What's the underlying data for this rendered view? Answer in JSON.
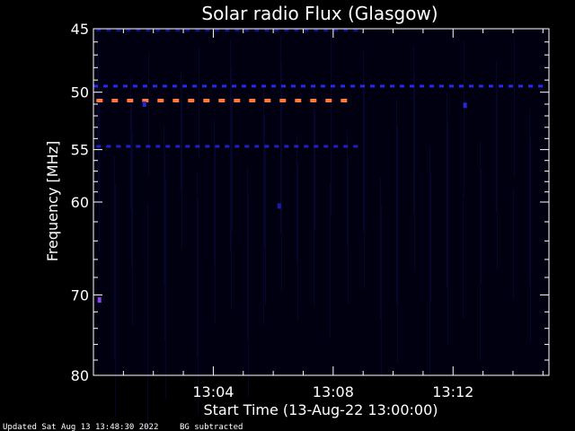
{
  "chart_data": {
    "type": "heatmap",
    "title": "Solar radio Flux (Glasgow)",
    "xlabel": "Start Time (13-Aug-22 13:00:00)",
    "ylabel": "Frequency [MHz]",
    "x_unit": "minutes after 13:00:00",
    "xlim": [
      0,
      15.2
    ],
    "ylim": [
      45,
      80
    ],
    "y_scale": "log",
    "x_ticks": [
      {
        "value": 4,
        "label": "13:04"
      },
      {
        "value": 8,
        "label": "13:08"
      },
      {
        "value": 12,
        "label": "13:12"
      }
    ],
    "y_ticks": [
      {
        "value": 45,
        "label": "45"
      },
      {
        "value": 50,
        "label": "50"
      },
      {
        "value": 55,
        "label": "55"
      },
      {
        "value": 60,
        "label": "60"
      },
      {
        "value": 70,
        "label": "70"
      },
      {
        "value": 80,
        "label": "80"
      }
    ],
    "background_color": "#000010",
    "frame_color": "#ffffff",
    "emission_bands": [
      {
        "frequency": 45.1,
        "x_start": 0.1,
        "x_end": 8.8,
        "color": "#14149a",
        "intensity": "low"
      },
      {
        "frequency": 49.5,
        "x_start": 0.0,
        "x_end": 15.2,
        "color": "#2828f0",
        "intensity": "medium"
      },
      {
        "frequency": 50.7,
        "x_start": 0.1,
        "x_end": 8.8,
        "color": "#ff7a3c",
        "intensity": "high"
      },
      {
        "frequency": 54.7,
        "x_start": 0.1,
        "x_end": 8.8,
        "color": "#2020c8",
        "intensity": "medium"
      }
    ],
    "bursts": [
      {
        "time": 0.2,
        "frequency": 70.6,
        "color": "#9040ff"
      },
      {
        "time": 1.7,
        "frequency": 51.0,
        "color": "#2828d0"
      },
      {
        "time": 12.4,
        "frequency": 51.1,
        "color": "#2828d0"
      },
      {
        "time": 6.2,
        "frequency": 60.4,
        "color": "#1a1aa8"
      }
    ]
  },
  "footer": {
    "updated": "Updated Sat Aug 13 13:48:30 2022",
    "note": "BG subtracted"
  }
}
